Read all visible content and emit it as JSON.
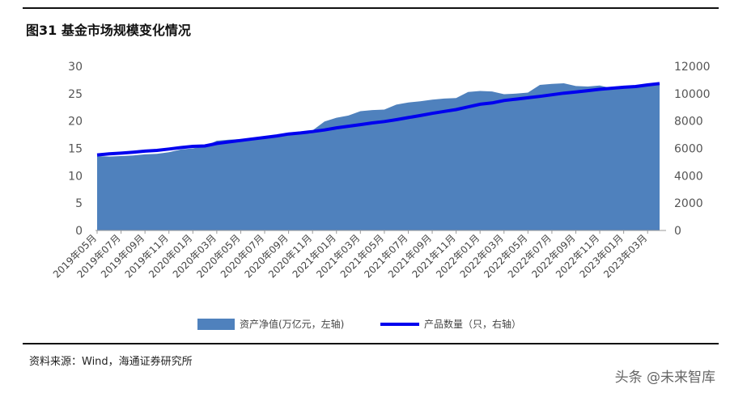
{
  "header": {
    "title": "图31 基金市场规模变化情况"
  },
  "footer": {
    "source": "资料来源：Wind，海通证券研究所",
    "watermark": "头条 @未来智库"
  },
  "colors": {
    "area": "#4f81bd",
    "line": "#0000ee"
  },
  "chart_data": {
    "type": "area",
    "title": "",
    "x": [
      "2019年05月",
      "2019年06月",
      "2019年07月",
      "2019年08月",
      "2019年09月",
      "2019年10月",
      "2019年11月",
      "2019年12月",
      "2020年01月",
      "2020年02月",
      "2020年03月",
      "2020年04月",
      "2020年05月",
      "2020年06月",
      "2020年07月",
      "2020年08月",
      "2020年09月",
      "2020年10月",
      "2020年11月",
      "2020年12月",
      "2021年01月",
      "2021年02月",
      "2021年03月",
      "2021年04月",
      "2021年05月",
      "2021年06月",
      "2021年07月",
      "2021年08月",
      "2021年09月",
      "2021年10月",
      "2021年11月",
      "2021年12月",
      "2022年01月",
      "2022年02月",
      "2022年03月",
      "2022年04月",
      "2022年05月",
      "2022年06月",
      "2022年07月",
      "2022年08月",
      "2022年09月",
      "2022年10月",
      "2022年11月",
      "2022年12月",
      "2023年01月",
      "2023年02月",
      "2023年03月",
      "2023年04月"
    ],
    "x_tick_labels": [
      "2019年05月",
      "2019年07月",
      "2019年09月",
      "2019年11月",
      "2020年01月",
      "2020年03月",
      "2020年05月",
      "2020年07月",
      "2020年09月",
      "2020年11月",
      "2021年01月",
      "2021年03月",
      "2021年05月",
      "2021年07月",
      "2021年09月",
      "2021年11月",
      "2022年01月",
      "2022年03月",
      "2022年05月",
      "2022年07月",
      "2022年09月",
      "2022年11月",
      "2023年01月",
      "2023年03月"
    ],
    "series": [
      {
        "name": "资产净值(万亿元，左轴)",
        "type": "area",
        "axis": "left",
        "values": [
          13.6,
          13.5,
          13.6,
          13.7,
          13.9,
          14.0,
          14.3,
          14.8,
          15.0,
          15.4,
          16.4,
          16.6,
          16.7,
          16.9,
          17.1,
          17.5,
          17.5,
          17.8,
          18.3,
          19.9,
          20.6,
          21.0,
          21.8,
          22.0,
          22.1,
          23.0,
          23.4,
          23.6,
          23.9,
          24.1,
          24.2,
          25.3,
          25.5,
          25.4,
          24.9,
          25.0,
          25.2,
          26.6,
          26.8,
          26.9,
          26.4,
          26.3,
          26.5,
          26.0,
          26.0,
          26.1,
          26.5,
          26.9
        ]
      },
      {
        "name": "产品数量（只，右轴）",
        "type": "line",
        "axis": "right",
        "values": [
          5520,
          5600,
          5650,
          5720,
          5800,
          5850,
          5950,
          6060,
          6150,
          6180,
          6360,
          6470,
          6580,
          6690,
          6800,
          6910,
          7050,
          7130,
          7230,
          7350,
          7500,
          7620,
          7740,
          7860,
          7960,
          8100,
          8250,
          8400,
          8560,
          8700,
          8840,
          9030,
          9230,
          9320,
          9500,
          9600,
          9700,
          9800,
          9920,
          10040,
          10120,
          10220,
          10320,
          10400,
          10470,
          10520,
          10640,
          10740
        ]
      }
    ],
    "left_axis": {
      "ylim": [
        0,
        30
      ],
      "ticks": [
        0,
        5,
        10,
        15,
        20,
        25,
        30
      ]
    },
    "right_axis": {
      "ylim": [
        0,
        12000
      ],
      "ticks": [
        0,
        2000,
        4000,
        6000,
        8000,
        10000,
        12000
      ]
    },
    "grid": false,
    "legend": "bottom-center"
  }
}
